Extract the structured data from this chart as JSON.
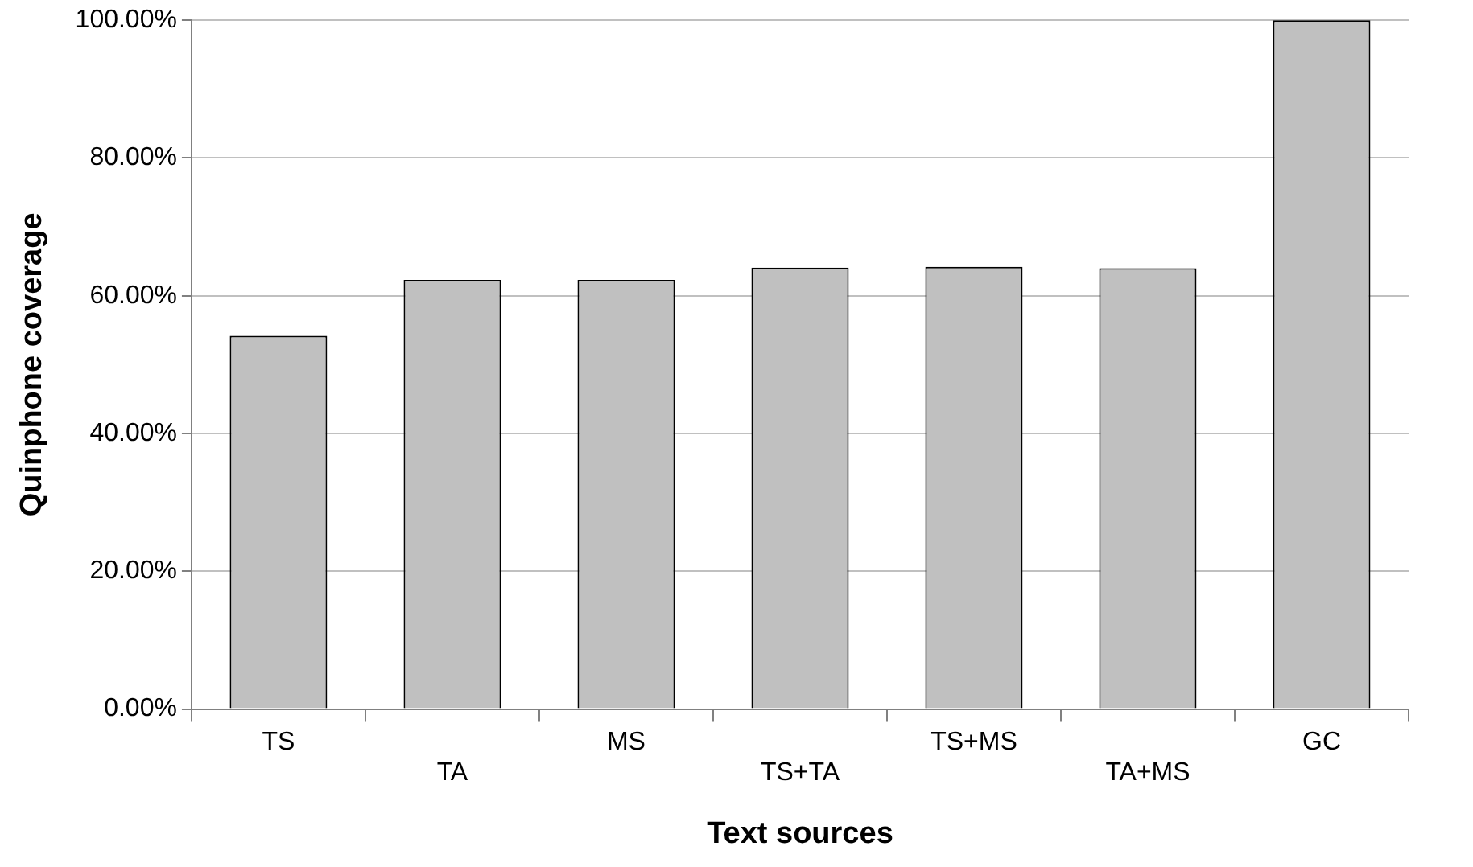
{
  "chart_data": {
    "type": "bar",
    "xlabel": "Text sources",
    "ylabel": "Quinphone coverage",
    "categories": [
      "TS",
      "TA",
      "MS",
      "TS+TA",
      "TS+MS",
      "TA+MS",
      "GC"
    ],
    "values": [
      54.2,
      62.3,
      62.3,
      64.1,
      64.2,
      64.0,
      100
    ],
    "color": "#c0c0c0",
    "ylim": [
      0,
      100
    ],
    "yticks": [
      {
        "value": 0,
        "label": "0.00%"
      },
      {
        "value": 20,
        "label": "20.00%"
      },
      {
        "value": 40,
        "label": "40.00%"
      },
      {
        "value": 60,
        "label": "60.00%"
      },
      {
        "value": 80,
        "label": "80.00%"
      },
      {
        "value": 100,
        "label": "100.00%"
      }
    ],
    "grid": "y",
    "legend": false
  }
}
